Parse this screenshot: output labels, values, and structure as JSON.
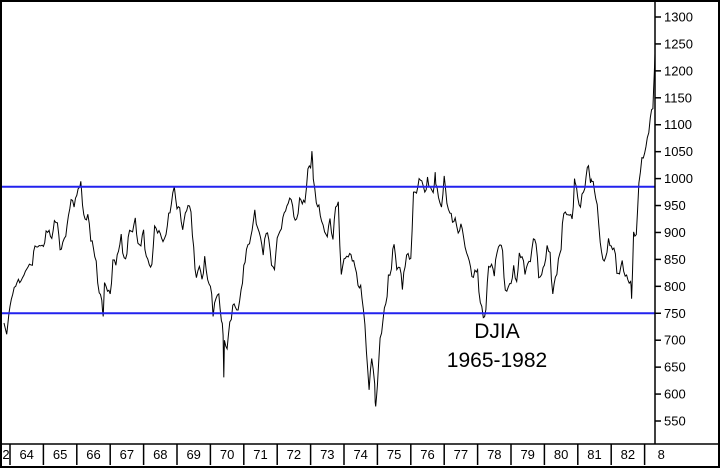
{
  "figure": {
    "background": "#ffffff",
    "border_color": "#000000",
    "axis_color": "#000000"
  },
  "annotation": {
    "symbol": "DJIA",
    "date_range": "1965-1982"
  },
  "chart_data": {
    "type": "line",
    "title": "DJIA 1965-1982",
    "xlabel": "",
    "ylabel": "",
    "grid": false,
    "legend": false,
    "y_range": [
      550,
      1300
    ],
    "y_axis": {
      "side": "right",
      "ticks": [
        550,
        600,
        650,
        700,
        750,
        800,
        850,
        900,
        950,
        1000,
        1050,
        1100,
        1150,
        1200,
        1250,
        1300
      ]
    },
    "x_axis": {
      "unit": "year",
      "tick_labels": [
        "2",
        "64",
        "65",
        "66",
        "67",
        "68",
        "69",
        "70",
        "71",
        "72",
        "73",
        "74",
        "75",
        "76",
        "77",
        "78",
        "79",
        "80",
        "81",
        "82",
        "8"
      ]
    },
    "reference_lines": [
      {
        "value": 985,
        "color": "#2222ee"
      },
      {
        "value": 750,
        "color": "#2222ee"
      }
    ],
    "series": [
      {
        "name": "DJIA",
        "color": "#000000",
        "points": [
          [
            1963.82,
            732
          ],
          [
            1963.9,
            711
          ],
          [
            1964.0,
            763
          ],
          [
            1964.08,
            785
          ],
          [
            1964.17,
            800
          ],
          [
            1964.25,
            813
          ],
          [
            1964.33,
            810
          ],
          [
            1964.42,
            821
          ],
          [
            1964.5,
            832
          ],
          [
            1964.58,
            841
          ],
          [
            1964.67,
            839
          ],
          [
            1964.75,
            875
          ],
          [
            1964.83,
            873
          ],
          [
            1964.92,
            875
          ],
          [
            1965.0,
            874
          ],
          [
            1965.08,
            903
          ],
          [
            1965.17,
            904
          ],
          [
            1965.25,
            889
          ],
          [
            1965.33,
            922
          ],
          [
            1965.42,
            918
          ],
          [
            1965.5,
            868
          ],
          [
            1965.58,
            882
          ],
          [
            1965.67,
            893
          ],
          [
            1965.75,
            931
          ],
          [
            1965.83,
            961
          ],
          [
            1965.92,
            947
          ],
          [
            1966.0,
            969
          ],
          [
            1966.08,
            984
          ],
          [
            1966.12,
            995
          ],
          [
            1966.17,
            951
          ],
          [
            1966.25,
            925
          ],
          [
            1966.33,
            934
          ],
          [
            1966.42,
            884
          ],
          [
            1966.5,
            870
          ],
          [
            1966.58,
            847
          ],
          [
            1966.67,
            788
          ],
          [
            1966.75,
            774
          ],
          [
            1966.79,
            744
          ],
          [
            1966.83,
            807
          ],
          [
            1966.92,
            791
          ],
          [
            1967.0,
            786
          ],
          [
            1967.08,
            849
          ],
          [
            1967.17,
            839
          ],
          [
            1967.25,
            865
          ],
          [
            1967.33,
            897
          ],
          [
            1967.42,
            853
          ],
          [
            1967.5,
            860
          ],
          [
            1967.58,
            904
          ],
          [
            1967.67,
            901
          ],
          [
            1967.75,
            927
          ],
          [
            1967.83,
            880
          ],
          [
            1967.92,
            875
          ],
          [
            1968.0,
            905
          ],
          [
            1968.08,
            856
          ],
          [
            1968.17,
            840
          ],
          [
            1968.25,
            841
          ],
          [
            1968.33,
            912
          ],
          [
            1968.42,
            899
          ],
          [
            1968.5,
            898
          ],
          [
            1968.58,
            883
          ],
          [
            1968.67,
            896
          ],
          [
            1968.75,
            936
          ],
          [
            1968.83,
            952
          ],
          [
            1968.92,
            985
          ],
          [
            1969.0,
            944
          ],
          [
            1969.08,
            946
          ],
          [
            1969.17,
            905
          ],
          [
            1969.25,
            936
          ],
          [
            1969.33,
            950
          ],
          [
            1969.42,
            938
          ],
          [
            1969.5,
            873
          ],
          [
            1969.58,
            816
          ],
          [
            1969.67,
            837
          ],
          [
            1969.75,
            813
          ],
          [
            1969.83,
            856
          ],
          [
            1969.92,
            812
          ],
          [
            1970.0,
            800
          ],
          [
            1970.08,
            744
          ],
          [
            1970.17,
            778
          ],
          [
            1970.25,
            786
          ],
          [
            1970.33,
            736
          ],
          [
            1970.38,
            709
          ],
          [
            1970.4,
            631
          ],
          [
            1970.42,
            700
          ],
          [
            1970.5,
            684
          ],
          [
            1970.58,
            734
          ],
          [
            1970.67,
            765
          ],
          [
            1970.75,
            761
          ],
          [
            1970.83,
            756
          ],
          [
            1970.92,
            794
          ],
          [
            1971.0,
            839
          ],
          [
            1971.08,
            869
          ],
          [
            1971.17,
            879
          ],
          [
            1971.25,
            904
          ],
          [
            1971.33,
            942
          ],
          [
            1971.42,
            908
          ],
          [
            1971.5,
            891
          ],
          [
            1971.58,
            858
          ],
          [
            1971.67,
            898
          ],
          [
            1971.75,
            887
          ],
          [
            1971.83,
            839
          ],
          [
            1971.92,
            831
          ],
          [
            1972.0,
            890
          ],
          [
            1972.08,
            902
          ],
          [
            1972.17,
            928
          ],
          [
            1972.25,
            940
          ],
          [
            1972.33,
            954
          ],
          [
            1972.42,
            961
          ],
          [
            1972.5,
            929
          ],
          [
            1972.58,
            925
          ],
          [
            1972.67,
            964
          ],
          [
            1972.75,
            953
          ],
          [
            1972.83,
            956
          ],
          [
            1972.92,
            1018
          ],
          [
            1973.0,
            1020
          ],
          [
            1973.04,
            1051
          ],
          [
            1973.08,
            999
          ],
          [
            1973.17,
            955
          ],
          [
            1973.25,
            951
          ],
          [
            1973.33,
            921
          ],
          [
            1973.42,
            901
          ],
          [
            1973.5,
            892
          ],
          [
            1973.58,
            926
          ],
          [
            1973.67,
            887
          ],
          [
            1973.75,
            947
          ],
          [
            1973.83,
            957
          ],
          [
            1973.92,
            822
          ],
          [
            1974.0,
            851
          ],
          [
            1974.08,
            856
          ],
          [
            1974.17,
            861
          ],
          [
            1974.25,
            847
          ],
          [
            1974.33,
            836
          ],
          [
            1974.42,
            802
          ],
          [
            1974.5,
            802
          ],
          [
            1974.58,
            757
          ],
          [
            1974.67,
            679
          ],
          [
            1974.75,
            608
          ],
          [
            1974.83,
            666
          ],
          [
            1974.92,
            619
          ],
          [
            1974.95,
            577
          ],
          [
            1975.0,
            616
          ],
          [
            1975.08,
            704
          ],
          [
            1975.17,
            739
          ],
          [
            1975.25,
            768
          ],
          [
            1975.33,
            821
          ],
          [
            1975.42,
            832
          ],
          [
            1975.5,
            878
          ],
          [
            1975.58,
            831
          ],
          [
            1975.67,
            835
          ],
          [
            1975.75,
            794
          ],
          [
            1975.83,
            836
          ],
          [
            1975.92,
            861
          ],
          [
            1976.0,
            852
          ],
          [
            1976.08,
            975
          ],
          [
            1976.17,
            973
          ],
          [
            1976.25,
            1000
          ],
          [
            1976.33,
            996
          ],
          [
            1976.42,
            975
          ],
          [
            1976.5,
            1003
          ],
          [
            1976.58,
            985
          ],
          [
            1976.67,
            974
          ],
          [
            1976.73,
            1012
          ],
          [
            1976.75,
            990
          ],
          [
            1976.83,
            965
          ],
          [
            1976.92,
            947
          ],
          [
            1977.0,
            1005
          ],
          [
            1977.08,
            954
          ],
          [
            1977.17,
            936
          ],
          [
            1977.25,
            919
          ],
          [
            1977.33,
            927
          ],
          [
            1977.42,
            899
          ],
          [
            1977.5,
            916
          ],
          [
            1977.58,
            891
          ],
          [
            1977.67,
            862
          ],
          [
            1977.75,
            847
          ],
          [
            1977.83,
            818
          ],
          [
            1977.92,
            830
          ],
          [
            1978.0,
            831
          ],
          [
            1978.08,
            770
          ],
          [
            1978.17,
            742
          ],
          [
            1978.25,
            757
          ],
          [
            1978.33,
            837
          ],
          [
            1978.42,
            841
          ],
          [
            1978.5,
            819
          ],
          [
            1978.58,
            862
          ],
          [
            1978.67,
            877
          ],
          [
            1978.75,
            866
          ],
          [
            1978.83,
            793
          ],
          [
            1978.92,
            799
          ],
          [
            1979.0,
            805
          ],
          [
            1979.08,
            839
          ],
          [
            1979.17,
            809
          ],
          [
            1979.25,
            862
          ],
          [
            1979.33,
            855
          ],
          [
            1979.42,
            822
          ],
          [
            1979.5,
            842
          ],
          [
            1979.58,
            846
          ],
          [
            1979.67,
            888
          ],
          [
            1979.75,
            879
          ],
          [
            1979.83,
            816
          ],
          [
            1979.92,
            822
          ],
          [
            1980.0,
            839
          ],
          [
            1980.08,
            876
          ],
          [
            1980.17,
            863
          ],
          [
            1980.25,
            786
          ],
          [
            1980.33,
            817
          ],
          [
            1980.42,
            851
          ],
          [
            1980.5,
            868
          ],
          [
            1980.58,
            935
          ],
          [
            1980.67,
            933
          ],
          [
            1980.75,
            932
          ],
          [
            1980.83,
            925
          ],
          [
            1980.9,
            1000
          ],
          [
            1980.92,
            993
          ],
          [
            1981.0,
            964
          ],
          [
            1981.08,
            947
          ],
          [
            1981.17,
            975
          ],
          [
            1981.25,
            1004
          ],
          [
            1981.32,
            1024
          ],
          [
            1981.38,
            992
          ],
          [
            1981.42,
            995
          ],
          [
            1981.5,
            977
          ],
          [
            1981.58,
            952
          ],
          [
            1981.67,
            882
          ],
          [
            1981.75,
            850
          ],
          [
            1981.83,
            853
          ],
          [
            1981.92,
            889
          ],
          [
            1982.0,
            875
          ],
          [
            1982.08,
            871
          ],
          [
            1982.17,
            824
          ],
          [
            1982.25,
            823
          ],
          [
            1982.33,
            848
          ],
          [
            1982.42,
            819
          ],
          [
            1982.5,
            812
          ],
          [
            1982.58,
            809
          ],
          [
            1982.61,
            777
          ],
          [
            1982.67,
            901
          ],
          [
            1982.75,
            896
          ],
          [
            1982.83,
            992
          ],
          [
            1982.92,
            1039
          ],
          [
            1983.0,
            1047
          ],
          [
            1983.08,
            1076
          ],
          [
            1983.17,
            1113
          ],
          [
            1983.25,
            1130
          ],
          [
            1983.29,
            1196
          ],
          [
            1983.32,
            1248
          ]
        ]
      }
    ]
  }
}
